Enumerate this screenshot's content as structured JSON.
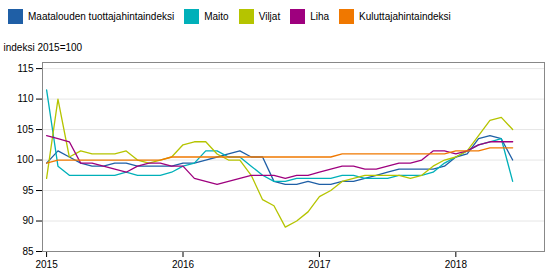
{
  "chart_data": {
    "type": "line",
    "ylabel": "indeksi 2015=100",
    "x": [
      2015.0,
      2015.0833333333333,
      2015.1666666666667,
      2015.25,
      2015.3333333333333,
      2015.4166666666667,
      2015.5,
      2015.5833333333333,
      2015.6666666666667,
      2015.75,
      2015.8333333333333,
      2015.9166666666667,
      2016.0,
      2016.0833333333333,
      2016.1666666666667,
      2016.25,
      2016.3333333333333,
      2016.4166666666667,
      2016.5,
      2016.5833333333333,
      2016.6666666666667,
      2016.75,
      2016.8333333333333,
      2016.9166666666667,
      2017.0,
      2017.0833333333333,
      2017.1666666666667,
      2017.25,
      2017.3333333333333,
      2017.4166666666667,
      2017.5,
      2017.5833333333333,
      2017.6666666666667,
      2017.75,
      2017.8333333333333,
      2017.9166666666667,
      2018.0,
      2018.0833333333333,
      2018.1666666666667,
      2018.25,
      2018.3333333333333,
      2018.4166666666667
    ],
    "series": [
      {
        "name": "Maatalouden tuottajahintaindeksi",
        "color": "#1f5fa6",
        "values": [
          99.5,
          101.5,
          100.5,
          99.5,
          99.0,
          99.0,
          99.5,
          99.5,
          99.0,
          99.0,
          99.0,
          99.0,
          99.5,
          99.5,
          100.0,
          100.5,
          101.0,
          101.5,
          100.5,
          100.5,
          96.5,
          96.0,
          96.0,
          96.5,
          96.0,
          96.0,
          96.5,
          96.5,
          97.0,
          97.5,
          98.0,
          98.5,
          98.5,
          98.5,
          98.5,
          99.0,
          100.5,
          101.0,
          103.5,
          104.0,
          103.5,
          100.0
        ]
      },
      {
        "name": "Maito",
        "color": "#00b0b9",
        "values": [
          111.5,
          99.0,
          97.5,
          97.5,
          97.5,
          97.5,
          97.5,
          98.0,
          97.5,
          97.5,
          97.5,
          98.0,
          99.0,
          99.5,
          101.5,
          101.5,
          100.5,
          100.5,
          99.0,
          97.5,
          96.5,
          96.5,
          97.0,
          97.0,
          97.0,
          97.0,
          97.5,
          97.5,
          97.0,
          97.0,
          97.0,
          97.5,
          97.5,
          97.5,
          98.0,
          99.5,
          100.5,
          101.5,
          102.5,
          103.0,
          103.5,
          96.5
        ]
      },
      {
        "name": "Viljat",
        "color": "#b5c400",
        "values": [
          97.0,
          110.0,
          100.5,
          101.5,
          101.0,
          101.0,
          101.0,
          101.5,
          100.0,
          99.5,
          100.0,
          100.5,
          102.5,
          103.0,
          103.0,
          101.0,
          100.0,
          100.0,
          97.5,
          93.5,
          92.5,
          89.0,
          90.0,
          91.5,
          94.0,
          95.0,
          96.5,
          97.0,
          97.5,
          97.5,
          97.5,
          97.5,
          97.0,
          97.5,
          99.0,
          100.0,
          100.5,
          101.5,
          104.0,
          106.5,
          107.0,
          105.0
        ]
      },
      {
        "name": "Liha",
        "color": "#9e007e",
        "values": [
          104.0,
          103.5,
          103.0,
          99.5,
          99.5,
          99.0,
          98.5,
          98.0,
          99.0,
          99.5,
          99.5,
          99.0,
          99.0,
          97.0,
          96.5,
          96.0,
          96.5,
          97.0,
          97.5,
          97.5,
          97.5,
          97.0,
          97.5,
          97.5,
          98.0,
          98.5,
          99.0,
          99.0,
          98.5,
          98.5,
          99.0,
          99.5,
          99.5,
          100.0,
          101.5,
          101.5,
          101.0,
          101.5,
          102.5,
          103.0,
          103.0,
          103.0
        ]
      },
      {
        "name": "Kuluttajahintaindeksi",
        "color": "#f07800",
        "values": [
          99.5,
          100.0,
          100.0,
          100.0,
          100.0,
          100.0,
          100.0,
          100.0,
          100.0,
          100.0,
          100.0,
          100.5,
          100.5,
          100.5,
          100.5,
          100.5,
          100.5,
          100.5,
          100.5,
          100.5,
          100.5,
          100.5,
          100.5,
          100.5,
          100.5,
          100.5,
          101.0,
          101.0,
          101.0,
          101.0,
          101.0,
          101.0,
          101.0,
          101.0,
          101.0,
          101.0,
          101.5,
          101.5,
          101.5,
          102.0,
          102.0,
          102.0
        ]
      }
    ],
    "xlim": [
      2014.97,
      2018.65
    ],
    "xticks": [
      2015,
      2016,
      2017,
      2018
    ],
    "ylim": [
      85,
      116
    ],
    "yticks": [
      85,
      90,
      95,
      100,
      105,
      110,
      115
    ],
    "grid": "y",
    "legend": "top"
  }
}
